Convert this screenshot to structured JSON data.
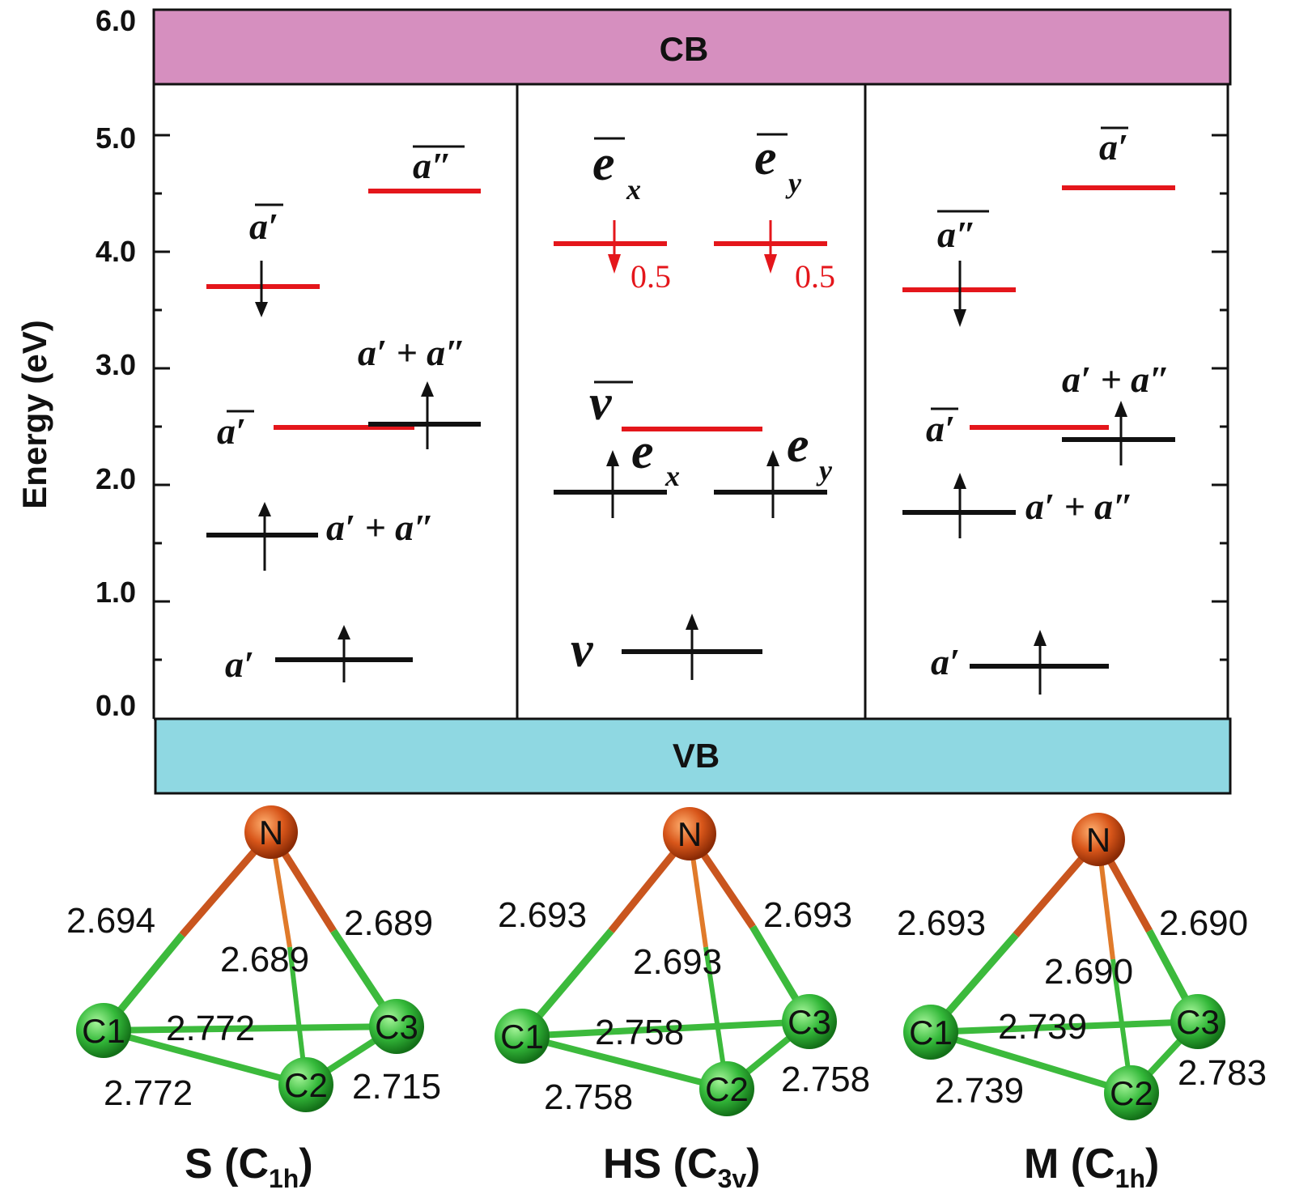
{
  "axis": {
    "ylabel": "Energy (eV)",
    "ticks": [
      "0.0",
      "1.0",
      "2.0",
      "3.0",
      "4.0",
      "5.0",
      "6.0"
    ]
  },
  "bands": {
    "cb": "CB",
    "vb": "VB"
  },
  "panels": [
    {
      "id": "S",
      "levels": {
        "l1": "a′",
        "l2": "a′ + a″",
        "l3a": "a′",
        "l3b": "a′ + a″",
        "l4": "a′",
        "l5": "a″"
      }
    },
    {
      "id": "HS",
      "levels": {
        "v": "ν",
        "vbar": "ν",
        "ex": "e",
        "ex_sub": "x",
        "ey": "e",
        "ey_sub": "y",
        "exbar": "e",
        "exbar_sub": "x",
        "eybar": "e",
        "eybar_sub": "y",
        "occ1": "0.5",
        "occ2": "0.5"
      }
    },
    {
      "id": "M",
      "levels": {
        "l1": "a′",
        "l2": "a′ + a″",
        "l3a": "a′",
        "l3b": "a′ + a″",
        "l4": "a″",
        "l5": "a′"
      }
    }
  ],
  "structures": [
    {
      "bonds": [
        "2.694",
        "2.689",
        "2.689",
        "2.772",
        "2.772",
        "2.715"
      ],
      "atoms": [
        "N",
        "C1",
        "C2",
        "C3"
      ],
      "caption": {
        "main": "S (C",
        "sub": "1h",
        "end": ")"
      }
    },
    {
      "bonds": [
        "2.693",
        "2.693",
        "2.693",
        "2.758",
        "2.758",
        "2.758"
      ],
      "atoms": [
        "N",
        "C1",
        "C2",
        "C3"
      ],
      "caption": {
        "main": "HS (C",
        "sub": "3v",
        "end": ")"
      }
    },
    {
      "bonds": [
        "2.693",
        "2.690",
        "2.690",
        "2.739",
        "2.739",
        "2.783"
      ],
      "atoms": [
        "N",
        "C1",
        "C2",
        "C3"
      ],
      "caption": {
        "main": "M (C",
        "sub": "1h",
        "end": ")"
      }
    }
  ],
  "colors": {
    "cb": "#d68fbf",
    "vb": "#8fd8e2",
    "occupied": "#111111",
    "empty": "#e4161b",
    "nitrogen": "#d8561a",
    "carbon": "#34b93a",
    "bond_c": "#3cba3c",
    "bond_n": "#c9551e"
  }
}
